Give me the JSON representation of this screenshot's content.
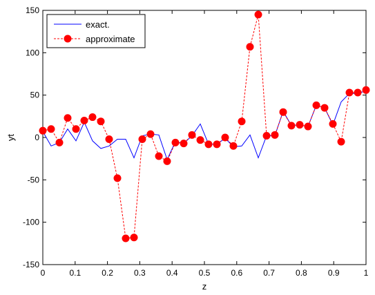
{
  "chart_data": {
    "type": "line",
    "xlabel": "z",
    "ylabel": "yt",
    "xlim": [
      0,
      1
    ],
    "ylim": [
      -150,
      150
    ],
    "xticks": [
      "0",
      "0.1",
      "0.2",
      "0.3",
      "0.4",
      "0.5",
      "0.6",
      "0.7",
      "0.8",
      "0.9",
      "1"
    ],
    "yticks": [
      "-150",
      "-100",
      "-50",
      "0",
      "50",
      "100",
      "150"
    ],
    "legend_position": "top-left",
    "grid": false,
    "series": [
      {
        "name": "exact.",
        "color": "#0000ff",
        "style": "solid",
        "marker": "none",
        "x": [
          0,
          0.0256,
          0.0513,
          0.0769,
          0.1026,
          0.1282,
          0.1538,
          0.1795,
          0.2051,
          0.2308,
          0.2564,
          0.2821,
          0.3077,
          0.3333,
          0.359,
          0.3846,
          0.4103,
          0.4359,
          0.4615,
          0.4872,
          0.5128,
          0.5385,
          0.5641,
          0.5897,
          0.6154,
          0.641,
          0.6667,
          0.6923,
          0.7179,
          0.7436,
          0.7692,
          0.7949,
          0.8205,
          0.8462,
          0.8718,
          0.8974,
          0.9231,
          0.9487,
          0.9744,
          1.0
        ],
        "y": [
          7,
          -10,
          -6,
          10,
          -4,
          18,
          -4,
          -13,
          -10,
          -2,
          -2,
          -24,
          2,
          4,
          3,
          -26,
          -5,
          -7,
          2,
          16,
          -8,
          -8,
          -1,
          -11,
          -10,
          3,
          -24,
          2,
          2,
          31,
          14,
          15,
          13,
          38,
          35,
          15,
          42,
          52,
          52,
          55
        ]
      },
      {
        "name": "approximate",
        "color": "#ff0000",
        "style": "dashed",
        "marker": "circle",
        "x": [
          0,
          0.0256,
          0.0513,
          0.0769,
          0.1026,
          0.1282,
          0.1538,
          0.1795,
          0.2051,
          0.2308,
          0.2564,
          0.2821,
          0.3077,
          0.3333,
          0.359,
          0.3846,
          0.4103,
          0.4359,
          0.4615,
          0.4872,
          0.5128,
          0.5385,
          0.5641,
          0.5897,
          0.6154,
          0.641,
          0.6667,
          0.6923,
          0.7179,
          0.7436,
          0.7692,
          0.7949,
          0.8205,
          0.8462,
          0.8718,
          0.8974,
          0.9231,
          0.9487,
          0.9744,
          1.0
        ],
        "y": [
          8,
          10,
          -6,
          23,
          10,
          20,
          24,
          19,
          -2,
          -48,
          -119,
          -118,
          -2,
          4,
          -22,
          -28,
          -6,
          -7,
          3,
          -3,
          -8,
          -8,
          0,
          -10,
          19,
          107,
          145,
          2,
          3,
          30,
          14,
          15,
          13,
          38,
          35,
          16,
          -5,
          53,
          53,
          56
        ]
      }
    ]
  }
}
